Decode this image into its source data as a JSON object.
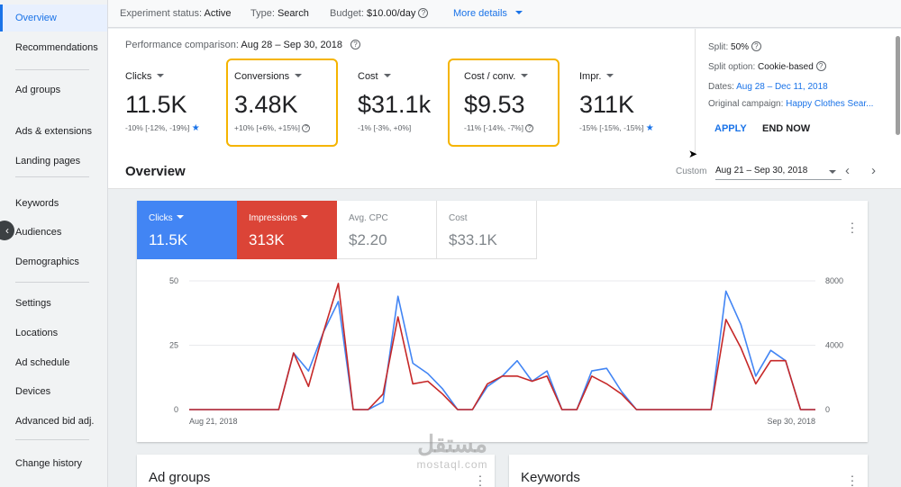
{
  "sidebar": {
    "items": [
      {
        "label": "Overview",
        "active": true
      },
      {
        "label": "Recommendations"
      },
      {
        "label": "Ad groups"
      },
      {
        "label": "Ads & extensions"
      },
      {
        "label": "Landing pages"
      },
      {
        "label": "Keywords"
      },
      {
        "label": "Audiences"
      },
      {
        "label": "Demographics"
      },
      {
        "label": "Settings"
      },
      {
        "label": "Locations"
      },
      {
        "label": "Ad schedule"
      },
      {
        "label": "Devices"
      },
      {
        "label": "Advanced bid adj."
      },
      {
        "label": "Change history"
      }
    ],
    "collapse_icon": "chevron-left-icon"
  },
  "topbar": {
    "status_label": "Experiment status:",
    "status_value": "Active",
    "type_label": "Type:",
    "type_value": "Search",
    "budget_label": "Budget:",
    "budget_value": "$10.00/day",
    "more_details": "More details"
  },
  "summary": {
    "perf_label": "Performance comparison:",
    "perf_range": "Aug 28 – Sep 30, 2018",
    "metrics": [
      {
        "label": "Clicks",
        "value": "11.5K",
        "change": "-10% [-12%, -19%]",
        "star": true
      },
      {
        "label": "Conversions",
        "value": "3.48K",
        "change": "+10% [+6%, +15%]",
        "help": true,
        "highlighted": true
      },
      {
        "label": "Cost",
        "value": "$31.1k",
        "change": "-1% [-3%, +0%]"
      },
      {
        "label": "Cost / conv.",
        "value": "$9.53",
        "change": "-11% [-14%, -7%]",
        "help": true,
        "highlighted": true
      },
      {
        "label": "Impr.",
        "value": "311K",
        "change": "-15% [-15%, -15%]",
        "star": true
      }
    ],
    "highlight_color": "#f5b400"
  },
  "split": {
    "split_label": "Split:",
    "split_value": "50%",
    "option_label": "Split option:",
    "option_value": "Cookie-based",
    "dates_label": "Dates:",
    "dates_value": "Aug 28 – Dec 11, 2018",
    "campaign_label": "Original campaign:",
    "campaign_value": "Happy Clothes Sear...",
    "apply_label": "APPLY",
    "end_label": "END NOW"
  },
  "overview": {
    "title": "Overview",
    "custom_label": "Custom",
    "date_range": "Aug 21 – Sep 30, 2018"
  },
  "chart_tabs": [
    {
      "label": "Clicks",
      "value": "11.5K",
      "color": "#4285f4"
    },
    {
      "label": "Impressions",
      "value": "313K",
      "color": "#db4437"
    },
    {
      "label": "Avg. CPC",
      "value": "$2.20"
    },
    {
      "label": "Cost",
      "value": "$33.1K"
    }
  ],
  "chart_data": {
    "type": "line",
    "x_start_label": "Aug 21, 2018",
    "x_end_label": "Sep 30, 2018",
    "left_axis": {
      "ticks": [
        "50",
        "25",
        "0"
      ],
      "range": [
        0,
        50
      ]
    },
    "right_axis": {
      "ticks": [
        "8000",
        "4000",
        "0"
      ],
      "range": [
        0,
        8000
      ]
    },
    "grid": true,
    "series": [
      {
        "name": "Clicks",
        "color": "#4285f4",
        "axis": "left",
        "values": [
          0,
          0,
          0,
          0,
          0,
          0,
          0,
          22,
          15,
          30,
          42,
          0,
          0,
          3,
          44,
          18,
          14,
          8,
          0,
          0,
          9,
          13,
          19,
          11,
          15,
          0,
          0,
          15,
          16,
          7,
          0,
          0,
          0,
          0,
          0,
          0,
          46,
          33,
          13,
          23,
          19,
          0,
          0
        ]
      },
      {
        "name": "Impressions",
        "color": "#c62828",
        "axis": "right",
        "values": [
          0,
          0,
          0,
          0,
          0,
          0,
          0,
          3520,
          1440,
          4800,
          7840,
          0,
          0,
          960,
          5760,
          1600,
          1760,
          960,
          0,
          0,
          1600,
          2080,
          2080,
          1760,
          2080,
          0,
          0,
          2080,
          1600,
          960,
          0,
          0,
          0,
          0,
          0,
          0,
          5600,
          3840,
          1600,
          3040,
          3040,
          0,
          0
        ]
      }
    ]
  },
  "bottom_cards": {
    "ad_groups": "Ad groups",
    "keywords": "Keywords"
  },
  "watermark": {
    "arabic": "مستقل",
    "latin": "mostaql.com"
  }
}
